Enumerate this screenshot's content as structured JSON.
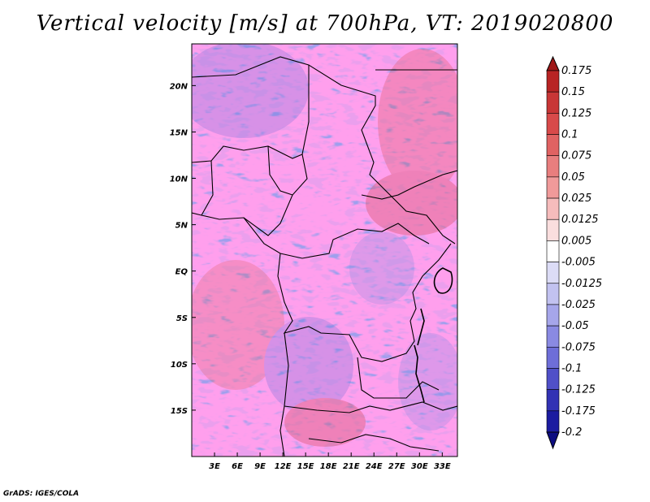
{
  "chart_data": {
    "type": "heatmap",
    "title": "Vertical velocity [m/s] at 700hPa, VT: 2019020800",
    "variable": "Vertical velocity",
    "units": "m/s",
    "level": "700hPa",
    "valid_time": "2019020800",
    "lon_range": [
      0,
      35
    ],
    "lat_range": [
      -20,
      24.5
    ],
    "x_ticks": [
      {
        "value": 3,
        "label": "3E"
      },
      {
        "value": 6,
        "label": "6E"
      },
      {
        "value": 9,
        "label": "9E"
      },
      {
        "value": 12,
        "label": "12E"
      },
      {
        "value": 15,
        "label": "15E"
      },
      {
        "value": 18,
        "label": "18E"
      },
      {
        "value": 21,
        "label": "21E"
      },
      {
        "value": 24,
        "label": "24E"
      },
      {
        "value": 27,
        "label": "27E"
      },
      {
        "value": 30,
        "label": "30E"
      },
      {
        "value": 33,
        "label": "33E"
      }
    ],
    "y_ticks": [
      {
        "value": 20,
        "label": "20N"
      },
      {
        "value": 15,
        "label": "15N"
      },
      {
        "value": 10,
        "label": "10N"
      },
      {
        "value": 5,
        "label": "5N"
      },
      {
        "value": 0,
        "label": "EQ"
      },
      {
        "value": -5,
        "label": "5S"
      },
      {
        "value": -10,
        "label": "10S"
      },
      {
        "value": -15,
        "label": "15S"
      }
    ],
    "colorbar": {
      "levels": [
        "0.175",
        "0.15",
        "0.125",
        "0.1",
        "0.075",
        "0.05",
        "0.025",
        "0.0125",
        "0.005",
        "-0.005",
        "-0.0125",
        "-0.025",
        "-0.05",
        "-0.075",
        "-0.1",
        "-0.125",
        "-0.175",
        "-0.2"
      ],
      "colors": [
        "#a01818",
        "#b82424",
        "#c83636",
        "#d84a4a",
        "#e06262",
        "#e87e7e",
        "#f09a9a",
        "#f6bcbc",
        "#fadede",
        "#ffffff",
        "#dcdcf6",
        "#c2c2f0",
        "#a6a6ea",
        "#8a8ae2",
        "#6e6ed8",
        "#5050c8",
        "#3232b4",
        "#1c1ca0",
        "#0c0c80"
      ]
    },
    "annotations": [
      "GrADS: IGES/COLA"
    ]
  },
  "credit": "GrADS: IGES/COLA"
}
